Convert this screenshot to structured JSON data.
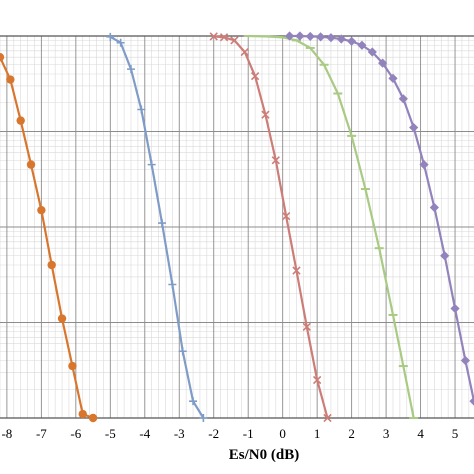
{
  "chart_data": {
    "type": "line",
    "title": "",
    "xlabel": "Es/N0 (dB)",
    "ylabel": "",
    "x_tick_labels": [
      "-8",
      "-7",
      "-6",
      "-5",
      "-4",
      "-3",
      "-2",
      "-1",
      "0",
      "1",
      "2",
      "3",
      "4",
      "5"
    ],
    "xlim": [
      -8.2,
      5.55
    ],
    "ylim_decades": [
      -4,
      0
    ],
    "y_scale": "log",
    "grid": true,
    "legend": "none",
    "series": [
      {
        "color": "#D9762E",
        "marker": "circle",
        "x": [
          -8.2,
          -7.9,
          -7.6,
          -7.3,
          -7.0,
          -6.7,
          -6.4,
          -6.1,
          -5.8,
          -5.5
        ],
        "y": [
          0.6,
          0.35,
          0.13,
          0.045,
          0.015,
          0.004,
          0.0011,
          0.00035,
          0.00011,
          0.0001
        ]
      },
      {
        "color": "#7F9CC8",
        "marker": "plus",
        "x": [
          -5.0,
          -4.7,
          -4.4,
          -4.1,
          -3.8,
          -3.5,
          -3.2,
          -2.9,
          -2.6,
          -2.3
        ],
        "y": [
          0.98,
          0.85,
          0.45,
          0.17,
          0.045,
          0.011,
          0.0025,
          0.0005,
          0.00015,
          0.0001
        ]
      },
      {
        "color": "#CD7D78",
        "marker": "x",
        "x": [
          -2.0,
          -1.7,
          -1.4,
          -1.1,
          -0.8,
          -0.5,
          -0.2,
          0.1,
          0.4,
          0.7,
          1.0,
          1.3
        ],
        "y": [
          0.99,
          0.97,
          0.9,
          0.68,
          0.38,
          0.15,
          0.05,
          0.013,
          0.0035,
          0.0009,
          0.00025,
          0.0001
        ]
      },
      {
        "color": "#A9CA82",
        "marker": "dash",
        "x": [
          -1.0,
          -0.5,
          0.0,
          0.4,
          0.8,
          1.2,
          1.6,
          2.0,
          2.4,
          2.8,
          3.2,
          3.5,
          3.8
        ],
        "y": [
          1.0,
          0.99,
          0.97,
          0.9,
          0.75,
          0.5,
          0.25,
          0.09,
          0.025,
          0.006,
          0.0012,
          0.00035,
          0.0001
        ]
      },
      {
        "color": "#9383BC",
        "marker": "diamond",
        "x": [
          0.2,
          0.5,
          0.8,
          1.1,
          1.4,
          1.7,
          2.0,
          2.3,
          2.6,
          2.9,
          3.2,
          3.5,
          3.8,
          4.1,
          4.4,
          4.7,
          5.0,
          5.3,
          5.55
        ],
        "y": [
          1.0,
          1.0,
          0.99,
          0.98,
          0.96,
          0.93,
          0.88,
          0.8,
          0.68,
          0.52,
          0.36,
          0.22,
          0.11,
          0.045,
          0.016,
          0.005,
          0.0014,
          0.0004,
          0.00015
        ]
      }
    ]
  }
}
